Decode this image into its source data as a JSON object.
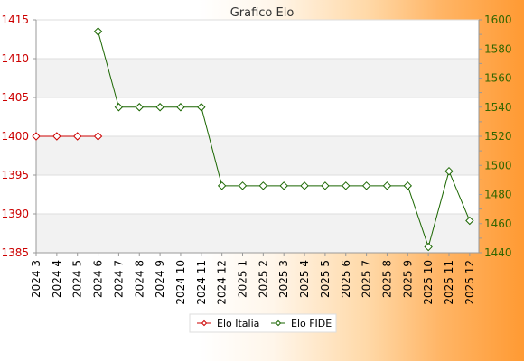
{
  "chart_data": {
    "type": "line",
    "title": "Grafico Elo",
    "categories": [
      "2024 3",
      "2024 4",
      "2024 5",
      "2024 6",
      "2024 7",
      "2024 8",
      "2024 9",
      "2024 10",
      "2024 11",
      "2024 12",
      "2025 1",
      "2025 2",
      "2025 3",
      "2025 4",
      "2025 5",
      "2025 6",
      "2025 7",
      "2025 8",
      "2025 9",
      "2025 10",
      "2025 11",
      "2025 12"
    ],
    "y_left": {
      "ticks": [
        "1385",
        "1390",
        "1395",
        "1400",
        "1405",
        "1410",
        "1415"
      ],
      "ylim": [
        1385,
        1415
      ],
      "color": "#cc0000"
    },
    "y_right": {
      "ticks": [
        "1440",
        "1460",
        "1480",
        "1500",
        "1520",
        "1540",
        "1560",
        "1580",
        "1600"
      ],
      "ylim": [
        1440,
        1600
      ],
      "color": "#336600"
    },
    "series": [
      {
        "name": "Elo Italia",
        "axis": "left",
        "color": "#cc0000",
        "values": [
          1400,
          1400,
          1400,
          1400,
          null,
          null,
          null,
          null,
          null,
          null,
          null,
          null,
          null,
          null,
          null,
          null,
          null,
          null,
          null,
          null,
          null,
          null
        ]
      },
      {
        "name": "Elo FIDE",
        "axis": "right",
        "color": "#1a6600",
        "values": [
          null,
          null,
          null,
          1592,
          1540,
          1540,
          1540,
          1540,
          1540,
          1486,
          1486,
          1486,
          1486,
          1486,
          1486,
          1486,
          1486,
          1486,
          1486,
          1444,
          1496,
          1462
        ]
      }
    ],
    "grid": true,
    "legend": "bottom"
  }
}
